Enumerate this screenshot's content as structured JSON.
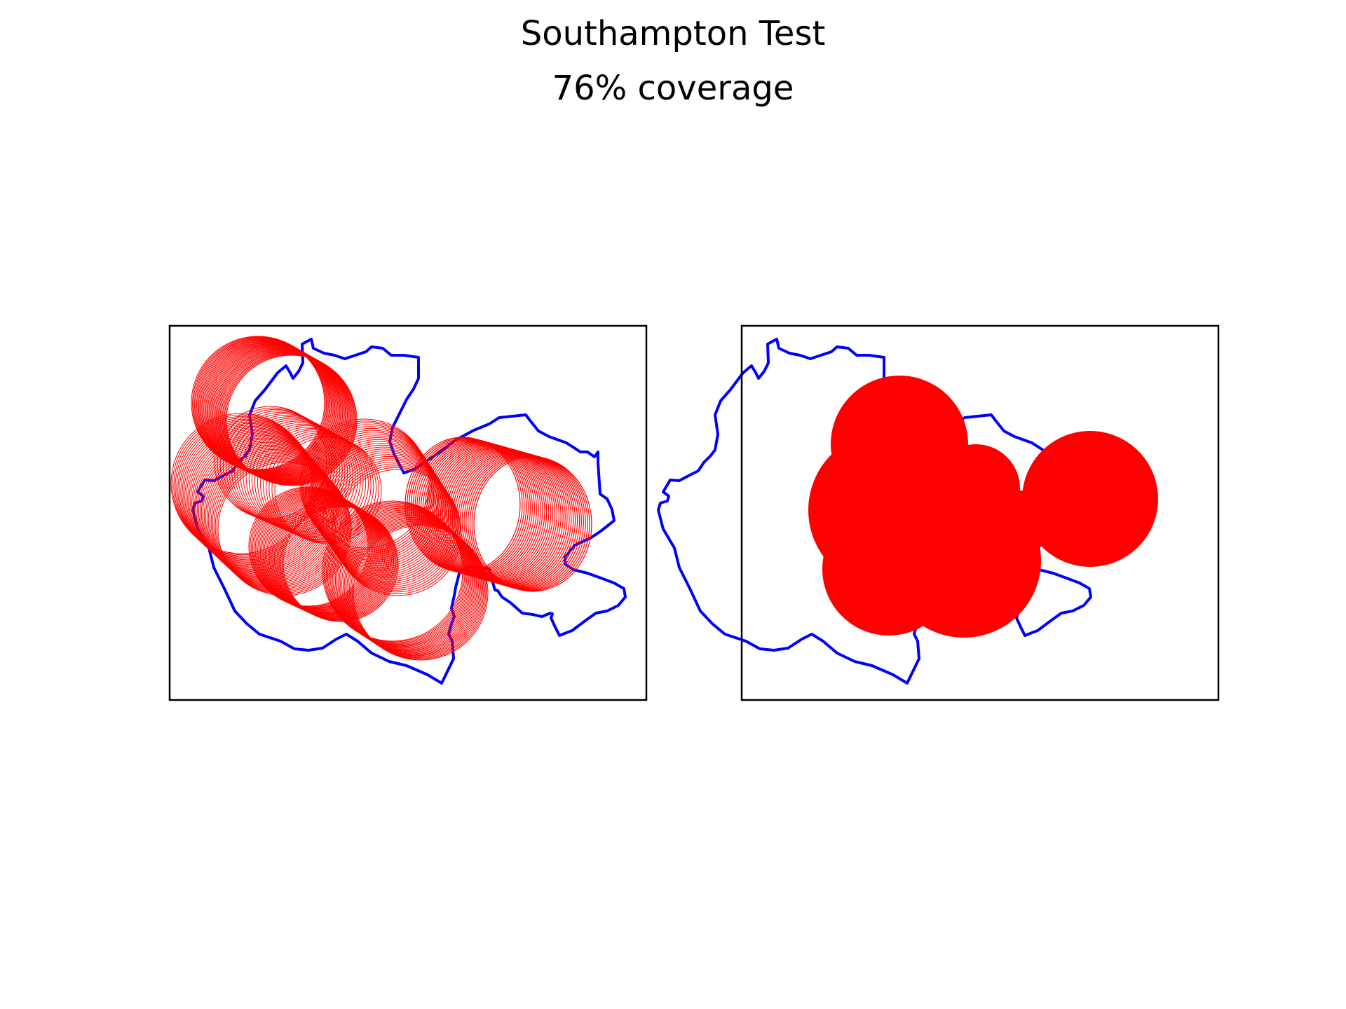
{
  "title": "Southampton Test",
  "subtitle": "76% coverage",
  "colors": {
    "boundary": "#0000ff",
    "coverage": "#ff0000",
    "frame": "#000000",
    "background": "#ffffff"
  },
  "chart_data": [
    {
      "type": "map",
      "panel": "left",
      "style": "circle outlines swept along paths",
      "axes_visible": false,
      "layers": [
        "constituency boundary",
        "coverage circles"
      ]
    },
    {
      "type": "map",
      "panel": "right",
      "style": "filled coverage circles",
      "axes_visible": false,
      "layers": [
        "constituency boundary",
        "coverage circles"
      ]
    }
  ]
}
